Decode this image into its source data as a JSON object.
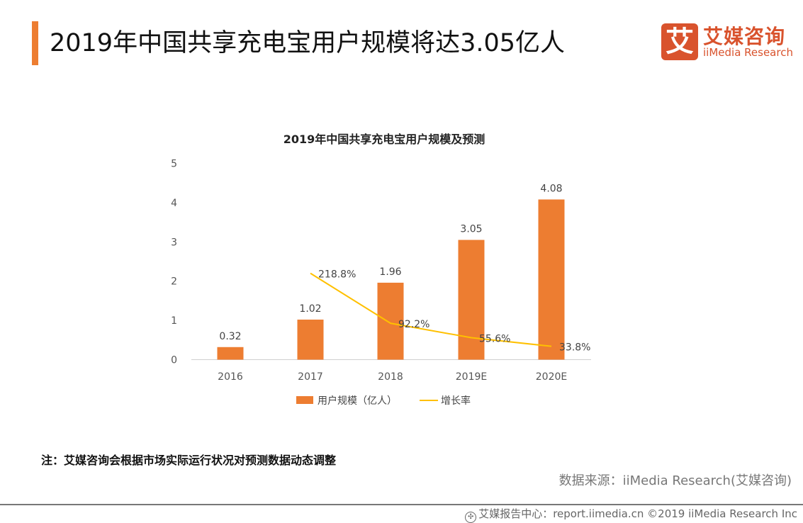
{
  "header": {
    "title": "2019年中国共享充电宝用户规模将达3.05亿人",
    "accent_color": "#ED7D31"
  },
  "logo": {
    "mark": "艾",
    "cn": "艾媒咨询",
    "en": "iiMedia Research",
    "color": "#D9532D"
  },
  "chart_data": {
    "type": "bar+line",
    "title": "2019年中国共享充电宝用户规模及预测",
    "categories": [
      "2016",
      "2017",
      "2018",
      "2019E",
      "2020E"
    ],
    "ylim": [
      0,
      5
    ],
    "yticks": [
      "0",
      "1",
      "2",
      "3",
      "4",
      "5"
    ],
    "grid": false,
    "legend_position": "bottom",
    "series": [
      {
        "name": "用户规模（亿人）",
        "type": "bar",
        "color": "#ED7D31",
        "values": [
          0.32,
          1.02,
          1.96,
          3.05,
          4.08
        ],
        "labels": [
          "0.32",
          "1.02",
          "1.96",
          "3.05",
          "4.08"
        ]
      },
      {
        "name": "增长率",
        "type": "line",
        "color": "#FFC000",
        "values": [
          null,
          218.8,
          92.2,
          55.6,
          33.8
        ],
        "labels": [
          "",
          "218.8%",
          "92.2%",
          "55.6%",
          "33.8%"
        ]
      }
    ]
  },
  "note": "注：艾媒咨询会根据市场实际运行状况对预测数据动态调整",
  "source": "数据来源：iiMedia Research(艾媒咨询)",
  "footer": {
    "icon": "globe-icon",
    "text": "艾媒报告中心：report.iimedia.cn  ©2019  iiMedia Research  Inc"
  }
}
